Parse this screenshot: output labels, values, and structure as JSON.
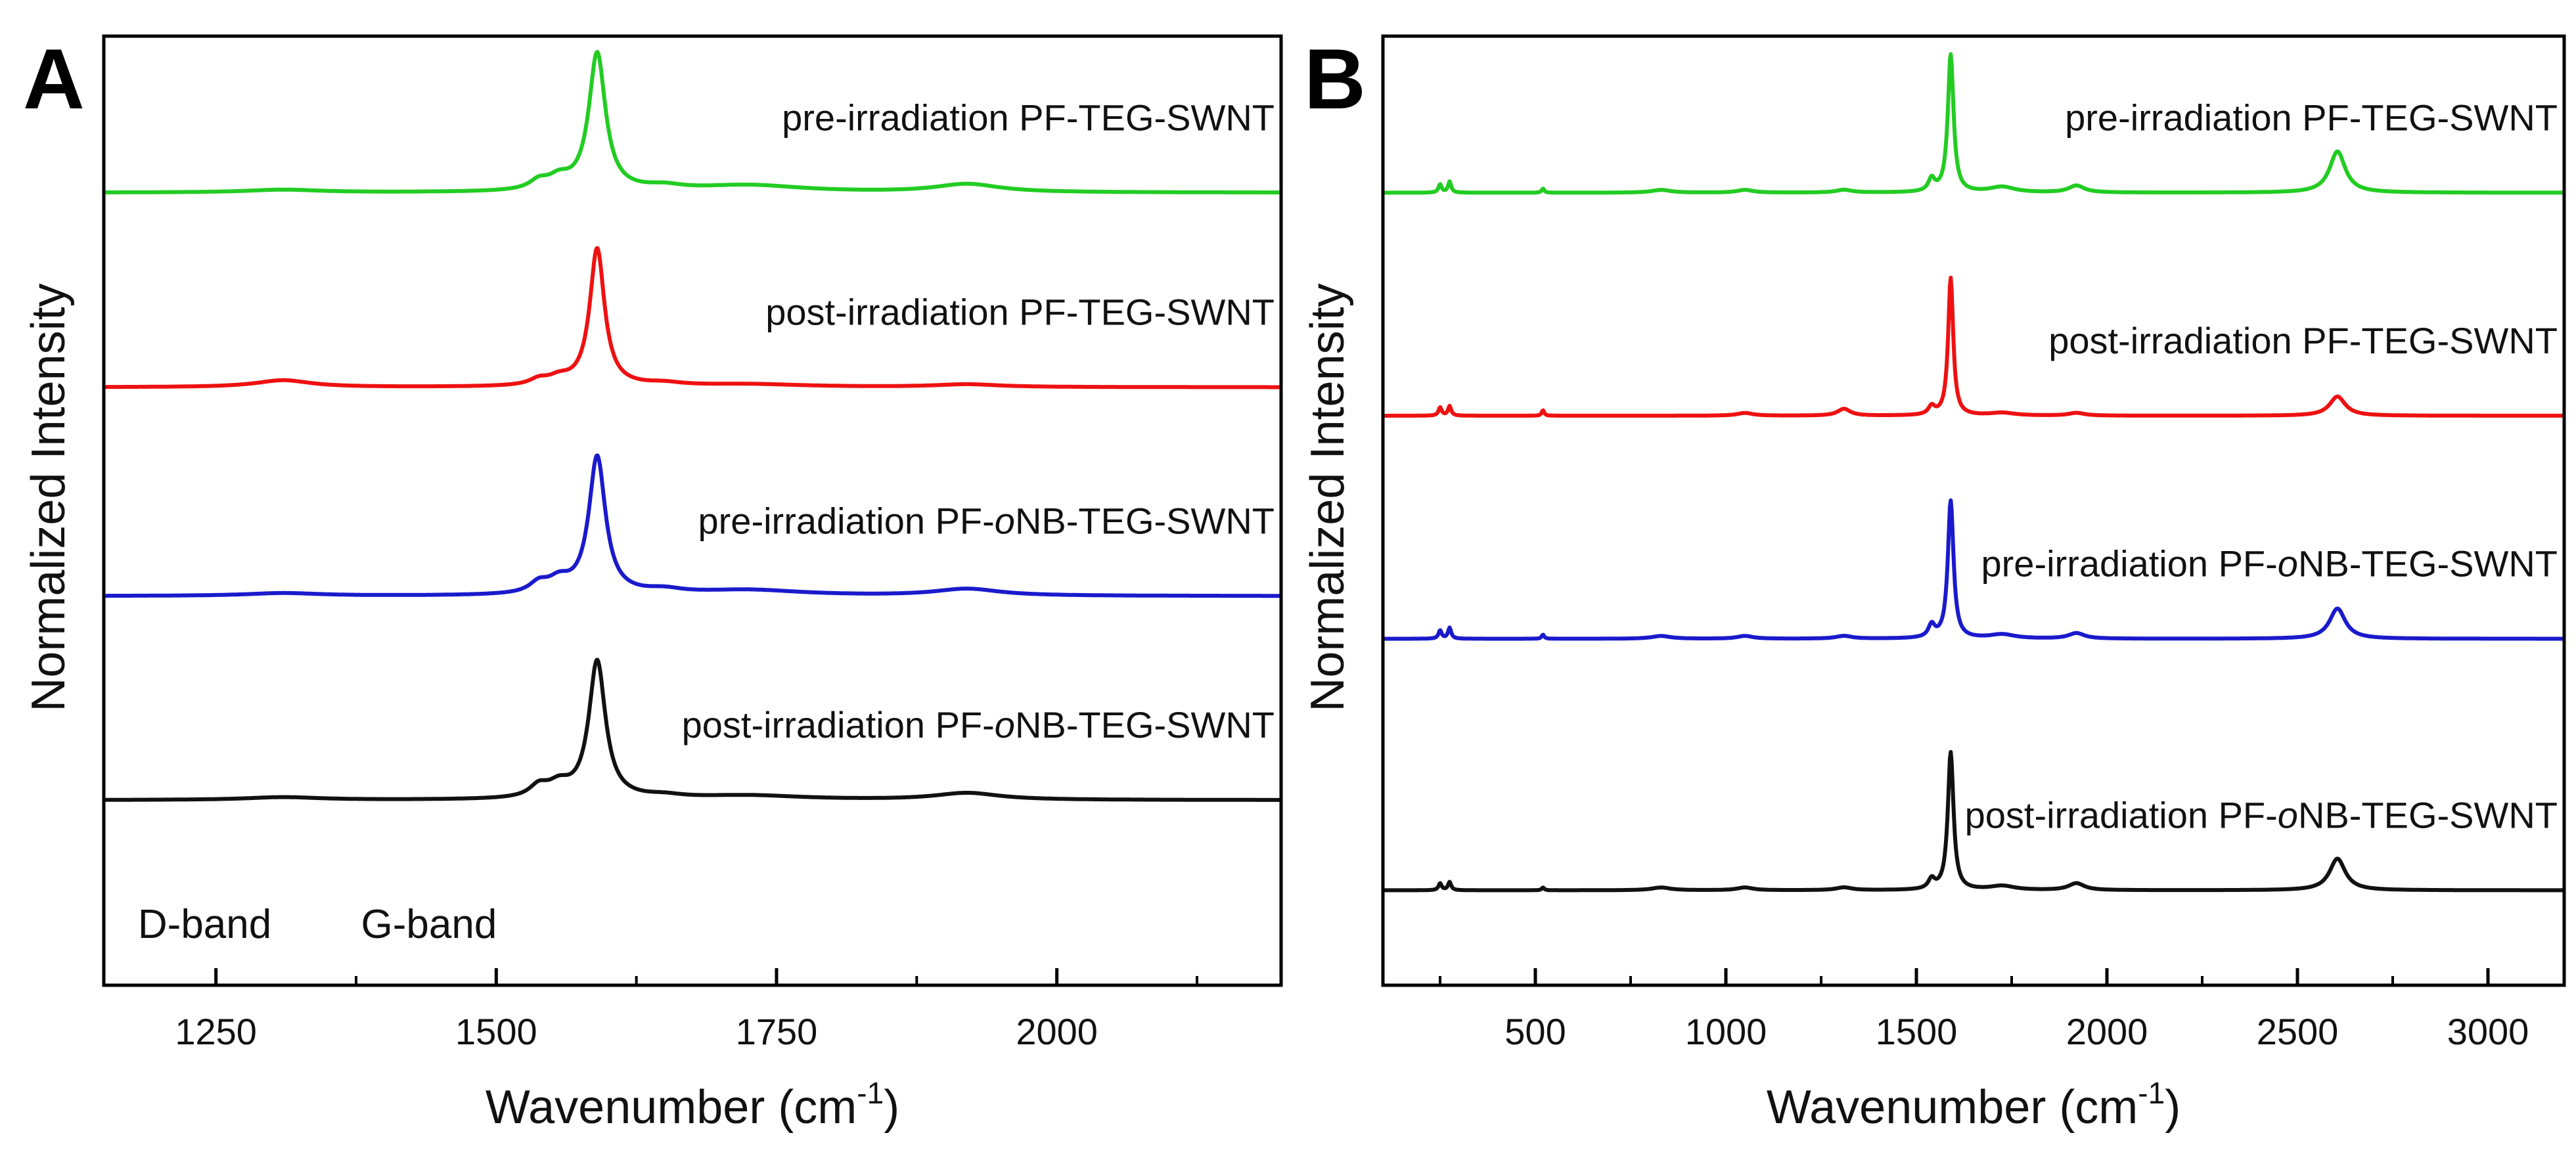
{
  "chart_data": [
    {
      "panel": "A",
      "type": "line",
      "title": "",
      "xlabel": "Wavenumber (cm-1)",
      "xlabel_base": "Wavenumber (cm",
      "xlabel_sup": "-1",
      "xlabel_close": ")",
      "ylabel": "Normalized Intensity",
      "xlim": [
        1150,
        2200
      ],
      "ylim": [
        0,
        1
      ],
      "grid": false,
      "legend": "inline labels to the right above each trace",
      "xticks_major": [
        1250,
        1500,
        1750,
        2000
      ],
      "xtick_labels": [
        "1250",
        "1500",
        "1750",
        "2000"
      ],
      "xticks_minor": [
        1375,
        1625,
        1875,
        2125
      ],
      "annotations": [
        {
          "text": "D-band",
          "x": 1240,
          "y": 0.05
        },
        {
          "text": "G-band",
          "x": 1440,
          "y": 0.05
        }
      ],
      "series": [
        {
          "name": "pre-irradiation PF-TEG-SWNT",
          "label_html": [
            "pre-irradiation PF-TEG-SWNT"
          ],
          "color": "#22cc22",
          "baseline": 0.835,
          "scale": 0.145,
          "peaks": [
            {
              "x": 1310,
              "h": 0.02,
              "w": 40
            },
            {
              "x": 1538,
              "h": 0.06,
              "w": 10
            },
            {
              "x": 1556,
              "h": 0.08,
              "w": 12
            },
            {
              "x": 1590,
              "h": 1.0,
              "w": 9
            },
            {
              "x": 1650,
              "h": 0.03,
              "w": 20
            },
            {
              "x": 1725,
              "h": 0.05,
              "w": 60
            },
            {
              "x": 1920,
              "h": 0.06,
              "w": 35
            }
          ]
        },
        {
          "name": "post-irradiation PF-TEG-SWNT",
          "label_html": [
            "post-irradiation PF-TEG-SWNT"
          ],
          "color": "#ee1111",
          "baseline": 0.63,
          "scale": 0.145,
          "peaks": [
            {
              "x": 1310,
              "h": 0.05,
              "w": 30
            },
            {
              "x": 1538,
              "h": 0.04,
              "w": 10
            },
            {
              "x": 1556,
              "h": 0.05,
              "w": 12
            },
            {
              "x": 1590,
              "h": 1.0,
              "w": 8
            },
            {
              "x": 1650,
              "h": 0.02,
              "w": 20
            },
            {
              "x": 1725,
              "h": 0.02,
              "w": 60
            },
            {
              "x": 1920,
              "h": 0.02,
              "w": 35
            }
          ]
        },
        {
          "name": "pre-irradiation PF-oNB-TEG-SWNT",
          "label_html": [
            "pre-irradiation PF-",
            "o",
            "NB-TEG-SWNT"
          ],
          "color": "#1a1acc",
          "baseline": 0.41,
          "scale": 0.145,
          "peaks": [
            {
              "x": 1310,
              "h": 0.02,
              "w": 40
            },
            {
              "x": 1538,
              "h": 0.07,
              "w": 10
            },
            {
              "x": 1556,
              "h": 0.09,
              "w": 12
            },
            {
              "x": 1590,
              "h": 1.0,
              "w": 9
            },
            {
              "x": 1650,
              "h": 0.03,
              "w": 20
            },
            {
              "x": 1725,
              "h": 0.04,
              "w": 60
            },
            {
              "x": 1920,
              "h": 0.05,
              "w": 35
            }
          ]
        },
        {
          "name": "post-irradiation PF-oNB-TEG-SWNT",
          "label_html": [
            "post-irradiation PF-",
            "o",
            "NB-TEG-SWNT"
          ],
          "color": "#111111",
          "baseline": 0.195,
          "scale": 0.145,
          "peaks": [
            {
              "x": 1310,
              "h": 0.02,
              "w": 40
            },
            {
              "x": 1538,
              "h": 0.08,
              "w": 10
            },
            {
              "x": 1556,
              "h": 0.09,
              "w": 12
            },
            {
              "x": 1590,
              "h": 1.0,
              "w": 9
            },
            {
              "x": 1650,
              "h": 0.02,
              "w": 20
            },
            {
              "x": 1725,
              "h": 0.03,
              "w": 60
            },
            {
              "x": 1920,
              "h": 0.05,
              "w": 35
            }
          ]
        }
      ]
    },
    {
      "panel": "B",
      "type": "line",
      "title": "",
      "xlabel": "Wavenumber (cm-1)",
      "xlabel_base": "Wavenumber (cm",
      "xlabel_sup": "-1",
      "xlabel_close": ")",
      "ylabel": "Normalized Intensity",
      "xlim": [
        100,
        3200
      ],
      "ylim": [
        0,
        1
      ],
      "grid": false,
      "legend": "inline labels to the right above each trace",
      "xticks_major": [
        500,
        1000,
        1500,
        2000,
        2500,
        3000
      ],
      "xtick_labels": [
        "500",
        "1000",
        "1500",
        "2000",
        "2500",
        "3000"
      ],
      "xticks_minor": [
        250,
        750,
        1250,
        1750,
        2250,
        2750
      ],
      "annotations": [],
      "series": [
        {
          "name": "pre-irradiation PF-TEG-SWNT",
          "label_html": [
            "pre-irradiation PF-TEG-SWNT"
          ],
          "color": "#22cc22",
          "baseline": 0.835,
          "scale": 0.145,
          "peaks": [
            {
              "x": 250,
              "h": 0.06,
              "w": 5
            },
            {
              "x": 275,
              "h": 0.08,
              "w": 5
            },
            {
              "x": 520,
              "h": 0.03,
              "w": 4
            },
            {
              "x": 830,
              "h": 0.02,
              "w": 30
            },
            {
              "x": 1050,
              "h": 0.02,
              "w": 25
            },
            {
              "x": 1310,
              "h": 0.02,
              "w": 25
            },
            {
              "x": 1540,
              "h": 0.09,
              "w": 10
            },
            {
              "x": 1590,
              "h": 1.0,
              "w": 9
            },
            {
              "x": 1725,
              "h": 0.04,
              "w": 40
            },
            {
              "x": 1920,
              "h": 0.05,
              "w": 25
            },
            {
              "x": 2605,
              "h": 0.3,
              "w": 25
            }
          ]
        },
        {
          "name": "post-irradiation PF-TEG-SWNT",
          "label_html": [
            "post-irradiation PF-TEG-SWNT"
          ],
          "color": "#ee1111",
          "baseline": 0.6,
          "scale": 0.145,
          "peaks": [
            {
              "x": 250,
              "h": 0.06,
              "w": 5
            },
            {
              "x": 275,
              "h": 0.07,
              "w": 5
            },
            {
              "x": 520,
              "h": 0.04,
              "w": 4
            },
            {
              "x": 1050,
              "h": 0.02,
              "w": 25
            },
            {
              "x": 1310,
              "h": 0.05,
              "w": 20
            },
            {
              "x": 1540,
              "h": 0.06,
              "w": 10
            },
            {
              "x": 1590,
              "h": 1.0,
              "w": 8
            },
            {
              "x": 1725,
              "h": 0.02,
              "w": 40
            },
            {
              "x": 1920,
              "h": 0.02,
              "w": 25
            },
            {
              "x": 2605,
              "h": 0.14,
              "w": 25
            }
          ]
        },
        {
          "name": "pre-irradiation PF-oNB-TEG-SWNT",
          "label_html": [
            "pre-irradiation PF-",
            "o",
            "NB-TEG-SWNT"
          ],
          "color": "#1a1acc",
          "baseline": 0.365,
          "scale": 0.145,
          "peaks": [
            {
              "x": 250,
              "h": 0.06,
              "w": 5
            },
            {
              "x": 275,
              "h": 0.08,
              "w": 5
            },
            {
              "x": 520,
              "h": 0.03,
              "w": 4
            },
            {
              "x": 830,
              "h": 0.02,
              "w": 30
            },
            {
              "x": 1050,
              "h": 0.02,
              "w": 25
            },
            {
              "x": 1310,
              "h": 0.02,
              "w": 25
            },
            {
              "x": 1540,
              "h": 0.09,
              "w": 10
            },
            {
              "x": 1590,
              "h": 1.0,
              "w": 9
            },
            {
              "x": 1725,
              "h": 0.03,
              "w": 40
            },
            {
              "x": 1920,
              "h": 0.04,
              "w": 25
            },
            {
              "x": 2605,
              "h": 0.22,
              "w": 25
            }
          ]
        },
        {
          "name": "post-irradiation PF-oNB-TEG-SWNT",
          "label_html": [
            "post-irradiation PF-",
            "o",
            "NB-TEG-SWNT"
          ],
          "color": "#111111",
          "baseline": 0.1,
          "scale": 0.145,
          "peaks": [
            {
              "x": 250,
              "h": 0.05,
              "w": 5
            },
            {
              "x": 275,
              "h": 0.06,
              "w": 5
            },
            {
              "x": 520,
              "h": 0.02,
              "w": 4
            },
            {
              "x": 830,
              "h": 0.02,
              "w": 30
            },
            {
              "x": 1050,
              "h": 0.02,
              "w": 25
            },
            {
              "x": 1310,
              "h": 0.02,
              "w": 25
            },
            {
              "x": 1540,
              "h": 0.07,
              "w": 10
            },
            {
              "x": 1590,
              "h": 1.0,
              "w": 9
            },
            {
              "x": 1725,
              "h": 0.03,
              "w": 40
            },
            {
              "x": 1920,
              "h": 0.05,
              "w": 25
            },
            {
              "x": 2605,
              "h": 0.23,
              "w": 25
            }
          ]
        }
      ]
    }
  ]
}
